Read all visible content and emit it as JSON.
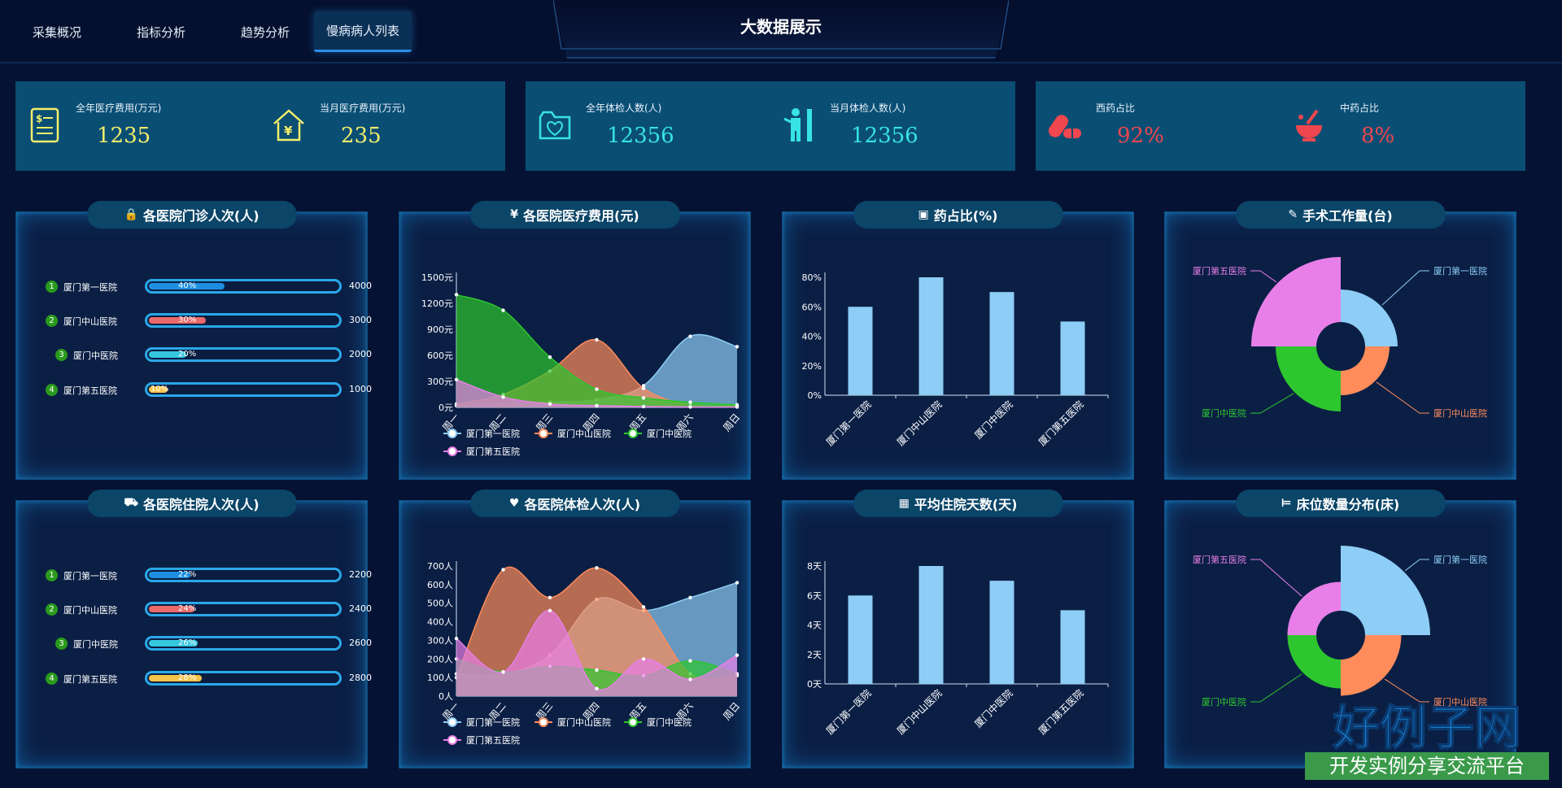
{
  "nav": {
    "items": [
      "采集概况",
      "指标分析",
      "趋势分析",
      "慢病病人列表"
    ],
    "active": 3
  },
  "title": "大数据展示",
  "stats": [
    {
      "label": "全年医疗费用(万元)",
      "value": "1235",
      "color": "#f4ee6a",
      "icon": "bill-icon"
    },
    {
      "label": "当月医疗费用(万元)",
      "value": "235",
      "color": "#f4ee6a",
      "icon": "yen-house-icon"
    },
    {
      "label": "全年体检人数(人)",
      "value": "12356",
      "color": "#37e3e3",
      "icon": "heart-folder-icon"
    },
    {
      "label": "当月体检人数(人)",
      "value": "12356",
      "color": "#37e3e3",
      "icon": "person-measure-icon"
    },
    {
      "label": "西药占比",
      "value": "92%",
      "color": "#f0464e",
      "icon": "pill-icon"
    },
    {
      "label": "中药占比",
      "value": "8%",
      "color": "#f0464e",
      "icon": "mortar-icon"
    }
  ],
  "panels": {
    "outpatient": {
      "title": "各医院门诊人次(人)",
      "icon": "lock-icon",
      "rows": [
        {
          "rank": "1",
          "name": "厦门第一医院",
          "percent": "40%",
          "pct": 0.4,
          "value": "4000",
          "color": "#1e8fe0"
        },
        {
          "rank": "2",
          "name": "厦门中山医院",
          "percent": "30%",
          "pct": 0.3,
          "value": "3000",
          "color": "#e86a6a"
        },
        {
          "rank": "3",
          "name": "厦门中医院",
          "percent": "20%",
          "pct": 0.2,
          "value": "2000",
          "color": "#35c6e0"
        },
        {
          "rank": "4",
          "name": "厦门第五医院",
          "percent": "10%",
          "pct": 0.1,
          "value": "1000",
          "color": "#f4c34a"
        }
      ]
    },
    "inpatient": {
      "title": "各医院住院人次(人)",
      "icon": "bed-person-icon",
      "rows": [
        {
          "rank": "1",
          "name": "厦门第一医院",
          "percent": "22%",
          "pct": 0.22,
          "value": "2200",
          "color": "#1e8fe0"
        },
        {
          "rank": "2",
          "name": "厦门中山医院",
          "percent": "24%",
          "pct": 0.24,
          "value": "2400",
          "color": "#e86a6a"
        },
        {
          "rank": "3",
          "name": "厦门中医院",
          "percent": "26%",
          "pct": 0.26,
          "value": "2600",
          "color": "#35c6e0"
        },
        {
          "rank": "4",
          "name": "厦门第五医院",
          "percent": "28%",
          "pct": 0.28,
          "value": "2800",
          "color": "#f4c34a"
        }
      ]
    },
    "cost": {
      "title": "各医院医疗费用(元)",
      "icon": "yen-circle-icon"
    },
    "checkup": {
      "title": "各医院体检人次(人)",
      "icon": "hand-heart-icon"
    },
    "drug": {
      "title": "药占比(%)",
      "icon": "medicine-box-icon"
    },
    "surgery": {
      "title": "手术工作量(台)",
      "icon": "scalpel-icon"
    },
    "stay": {
      "title": "平均住院天数(天)",
      "icon": "calendar-icon"
    },
    "beds": {
      "title": "床位数量分布(床)",
      "icon": "bed-icon"
    }
  },
  "watermark": {
    "big": "好例子网",
    "small": "开发实例分享交流平台"
  },
  "chart_data": [
    {
      "id": "cost",
      "type": "area",
      "categories": [
        "周一",
        "周二",
        "周三",
        "周四",
        "周五",
        "周六",
        "周日"
      ],
      "yticks": [
        "0元",
        "300元",
        "600元",
        "900元",
        "1200元",
        "1500元"
      ],
      "ylim": [
        0,
        1500
      ],
      "series": [
        {
          "name": "厦门第一医院",
          "color": "#8ecdf5",
          "values": [
            20,
            40,
            60,
            90,
            250,
            820,
            700
          ]
        },
        {
          "name": "厦门中山医院",
          "color": "#ff8c5a",
          "values": [
            40,
            150,
            420,
            780,
            220,
            30,
            20
          ]
        },
        {
          "name": "厦门中医院",
          "color": "#2ec62e",
          "values": [
            1300,
            1120,
            580,
            210,
            110,
            60,
            30
          ]
        },
        {
          "name": "厦门第五医院",
          "color": "#e87fe8",
          "values": [
            320,
            120,
            40,
            20,
            10,
            5,
            5
          ]
        }
      ]
    },
    {
      "id": "checkup",
      "type": "area",
      "categories": [
        "周一",
        "周二",
        "周三",
        "周四",
        "周五",
        "周六",
        "周日"
      ],
      "yticks": [
        "0人",
        "100人",
        "200人",
        "300人",
        "400人",
        "500人",
        "600人",
        "700人"
      ],
      "ylim": [
        0,
        700
      ],
      "series": [
        {
          "name": "厦门第一医院",
          "color": "#8ecdf5",
          "values": [
            120,
            120,
            220,
            520,
            460,
            530,
            610
          ]
        },
        {
          "name": "厦门中山医院",
          "color": "#ff8c5a",
          "values": [
            100,
            680,
            530,
            690,
            480,
            120,
            110
          ]
        },
        {
          "name": "厦门中医院",
          "color": "#2ec62e",
          "values": [
            200,
            130,
            160,
            140,
            110,
            190,
            120
          ]
        },
        {
          "name": "厦门第五医院",
          "color": "#e87fe8",
          "values": [
            310,
            130,
            460,
            40,
            200,
            90,
            220
          ]
        }
      ]
    },
    {
      "id": "drug",
      "type": "bar",
      "categories": [
        "厦门第一医院",
        "厦门中山医院",
        "厦门中医院",
        "厦门第五医院"
      ],
      "values": [
        60,
        80,
        70,
        50
      ],
      "yticks": [
        "0%",
        "20%",
        "40%",
        "60%",
        "80%"
      ],
      "ylim": [
        0,
        80
      ],
      "color": "#8ecdf5"
    },
    {
      "id": "stay",
      "type": "bar",
      "categories": [
        "厦门第一医院",
        "厦门中山医院",
        "厦门中医院",
        "厦门第五医院"
      ],
      "values": [
        6,
        8,
        7,
        5
      ],
      "yticks": [
        "0天",
        "2天",
        "4天",
        "6天",
        "8天"
      ],
      "ylim": [
        0,
        8
      ],
      "color": "#8ecdf5"
    },
    {
      "id": "surgery",
      "type": "pie",
      "categories": [
        "厦门第一医院",
        "厦门中山医院",
        "厦门中医院",
        "厦门第五医院"
      ],
      "values": [
        40,
        30,
        50,
        80
      ],
      "colors": [
        "#8ecdf5",
        "#ff8c5a",
        "#2ec62e",
        "#e87fe8"
      ]
    },
    {
      "id": "beds",
      "type": "pie",
      "categories": [
        "厦门第一医院",
        "厦门中山医院",
        "厦门中医院",
        "厦门第五医院"
      ],
      "values": [
        90,
        50,
        40,
        40
      ],
      "colors": [
        "#8ecdf5",
        "#ff8c5a",
        "#2ec62e",
        "#e87fe8"
      ]
    }
  ]
}
